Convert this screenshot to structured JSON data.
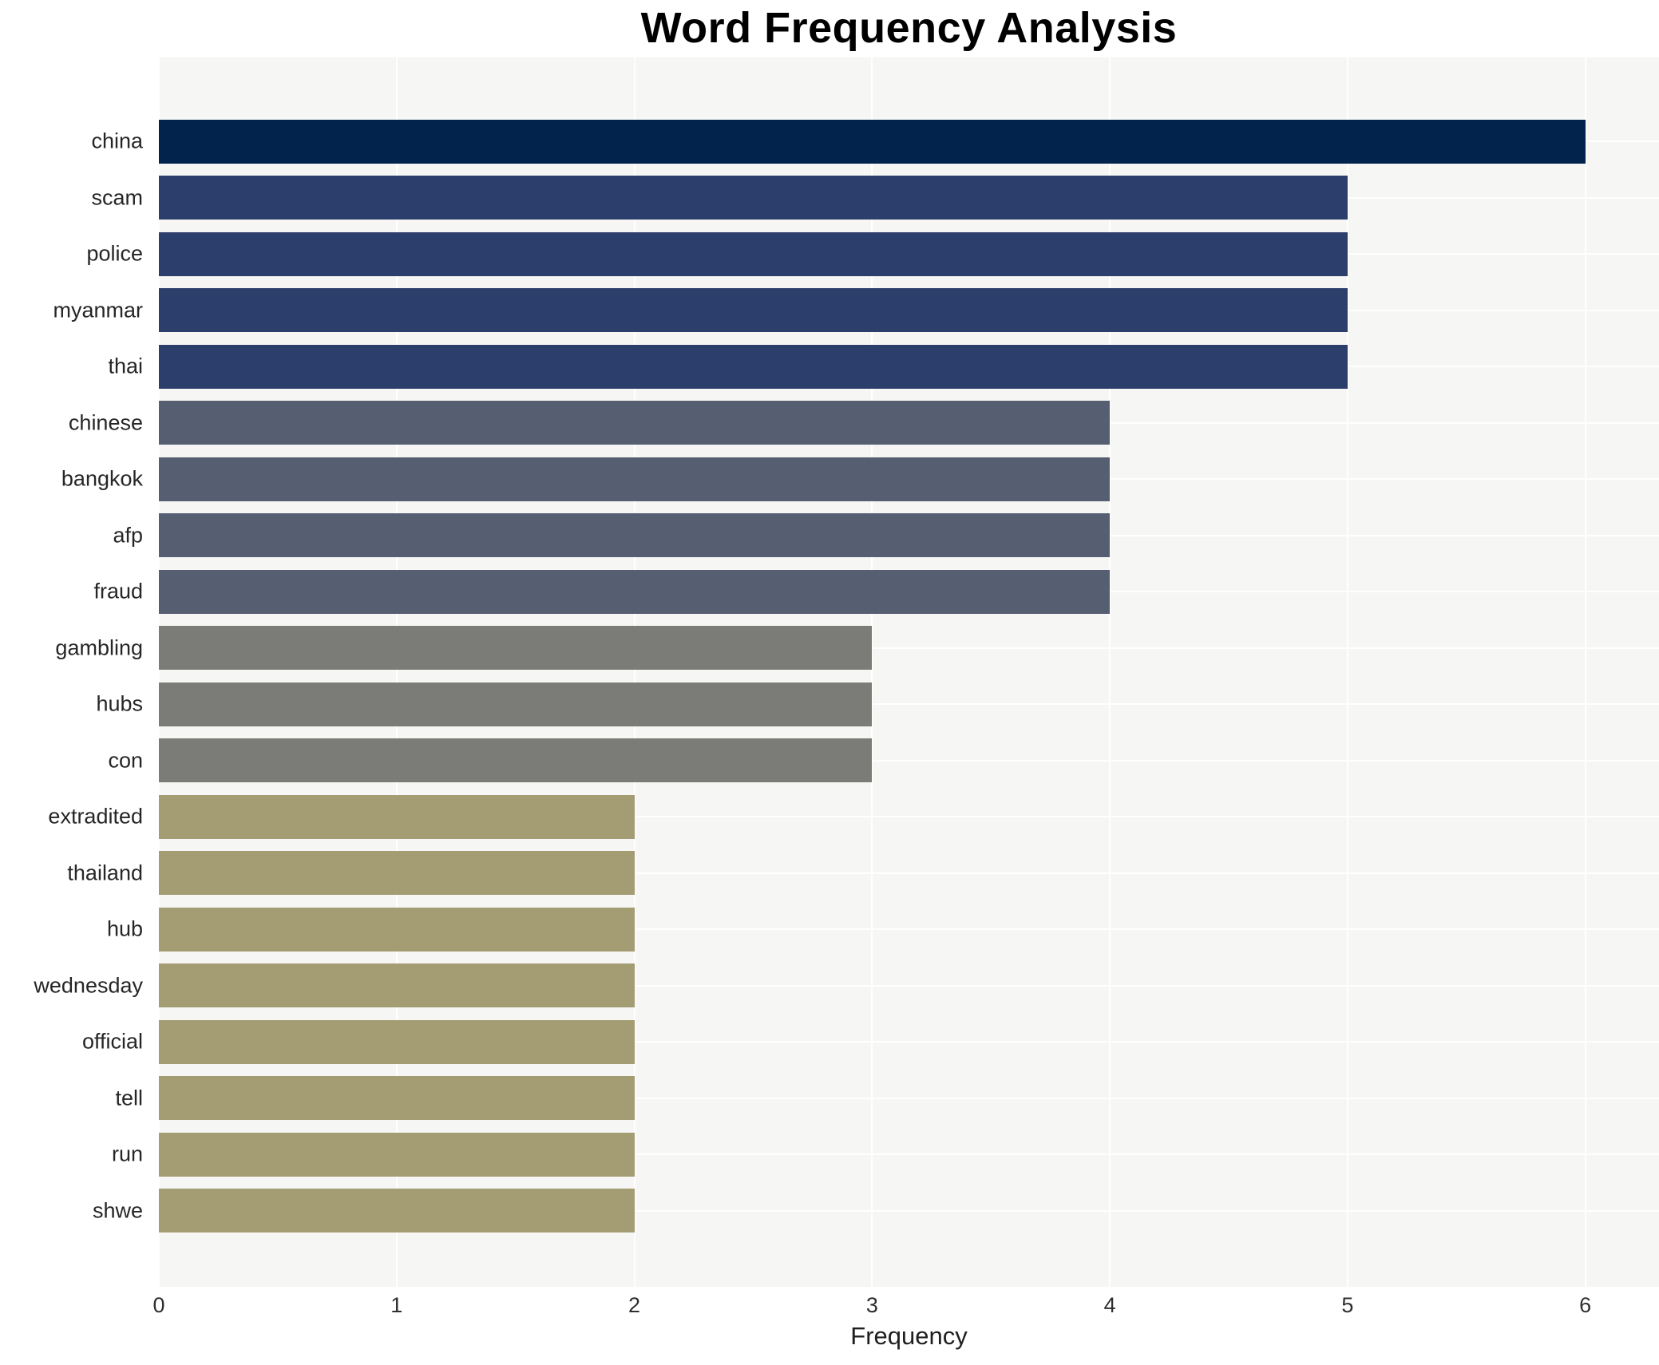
{
  "chart_data": {
    "type": "bar",
    "orientation": "horizontal",
    "title": "Word Frequency Analysis",
    "xlabel": "Frequency",
    "ylabel": "",
    "categories": [
      "china",
      "scam",
      "police",
      "myanmar",
      "thai",
      "chinese",
      "bangkok",
      "afp",
      "fraud",
      "gambling",
      "hubs",
      "con",
      "extradited",
      "thailand",
      "hub",
      "wednesday",
      "official",
      "tell",
      "run",
      "shwe"
    ],
    "values": [
      6,
      5,
      5,
      5,
      5,
      4,
      4,
      4,
      4,
      3,
      3,
      3,
      2,
      2,
      2,
      2,
      2,
      2,
      2,
      2
    ],
    "bar_colors": [
      "#02234c",
      "#2c3e6c",
      "#2c3e6c",
      "#2c3e6c",
      "#2c3e6c",
      "#565e72",
      "#565e72",
      "#565e72",
      "#565e72",
      "#7b7b78",
      "#7b7b78",
      "#7b7b78",
      "#a49c72",
      "#a49c72",
      "#a49c72",
      "#a49c72",
      "#a49c72",
      "#a49c72",
      "#a49c72",
      "#a49c72"
    ],
    "xlim": [
      0,
      6.31
    ],
    "xticks": [
      0,
      1,
      2,
      3,
      4,
      5,
      6
    ],
    "grid": true,
    "legend": false,
    "colors": {
      "plot_background": "#f6f6f4",
      "gridline": "#ffffff",
      "tick_text": "#2e2e2e",
      "title_text": "#000000"
    }
  }
}
